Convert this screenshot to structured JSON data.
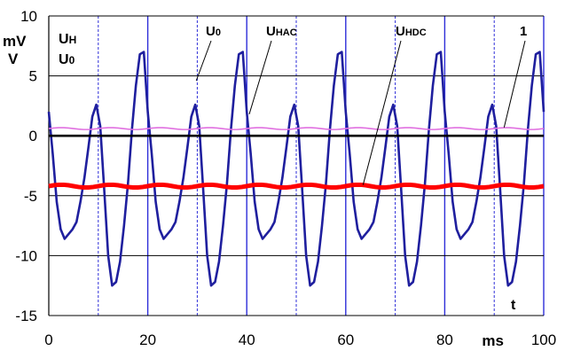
{
  "chart_data": {
    "type": "line",
    "title": "",
    "x_unit": "ms",
    "x_symbol": "t",
    "y_units": [
      "mV",
      "V"
    ],
    "y_symbols": [
      "U",
      "H",
      "U",
      "0"
    ],
    "xlim": [
      0,
      100
    ],
    "ylim": [
      -15,
      10
    ],
    "x_ticks": [
      0,
      20,
      40,
      60,
      80,
      100
    ],
    "y_ticks": [
      10,
      5,
      0,
      -5,
      -10,
      -15
    ],
    "grid": {
      "horizontal": "solid-black",
      "vertical": "dashed-blue every 10 ms, solid-blue every 20 ms"
    },
    "annotations": [
      {
        "id": "u0",
        "base": "U",
        "sub": "0",
        "x": 30,
        "y": 4.8
      },
      {
        "id": "uhac",
        "base": "U",
        "sub": "HAC",
        "x": 41,
        "y": 2.2
      },
      {
        "id": "uhdc",
        "base": "U",
        "sub": "HDC",
        "x": 62.5,
        "y": -4.1
      },
      {
        "id": "one",
        "text": "1",
        "x": 92,
        "y": 0.7
      }
    ],
    "series": [
      {
        "id": "uhac",
        "color": "#1f1f9e",
        "period_ms": 20,
        "cycle_points": [
          [
            0,
            2.0
          ],
          [
            0.8,
            -1.5
          ],
          [
            1.6,
            -5.5
          ],
          [
            2.4,
            -7.8
          ],
          [
            3.2,
            -8.6
          ],
          [
            4.0,
            -8.2
          ],
          [
            4.8,
            -7.8
          ],
          [
            5.6,
            -7.2
          ],
          [
            6.4,
            -5.5
          ],
          [
            7.2,
            -3.5
          ],
          [
            8.0,
            -1.0
          ],
          [
            8.8,
            1.6
          ],
          [
            9.6,
            2.6
          ],
          [
            10.4,
            0.8
          ],
          [
            11.2,
            -4.5
          ],
          [
            12.0,
            -10.0
          ],
          [
            12.8,
            -12.5
          ],
          [
            13.6,
            -12.2
          ],
          [
            14.4,
            -10.5
          ],
          [
            15.2,
            -7.5
          ],
          [
            16.0,
            -4.0
          ],
          [
            16.8,
            0.5
          ],
          [
            17.6,
            4.2
          ],
          [
            18.4,
            6.8
          ],
          [
            19.2,
            7.0
          ],
          [
            20.0,
            2.0
          ]
        ]
      },
      {
        "id": "uhdc",
        "color": "#ff0000",
        "level": -4.2,
        "ripple": 0.12
      },
      {
        "id": "u0",
        "color": "#e070e0",
        "level": 0.6,
        "ripple": 0.08
      },
      {
        "id": "zero",
        "color": "#000000",
        "level": 0.0,
        "ripple": 0
      }
    ]
  }
}
